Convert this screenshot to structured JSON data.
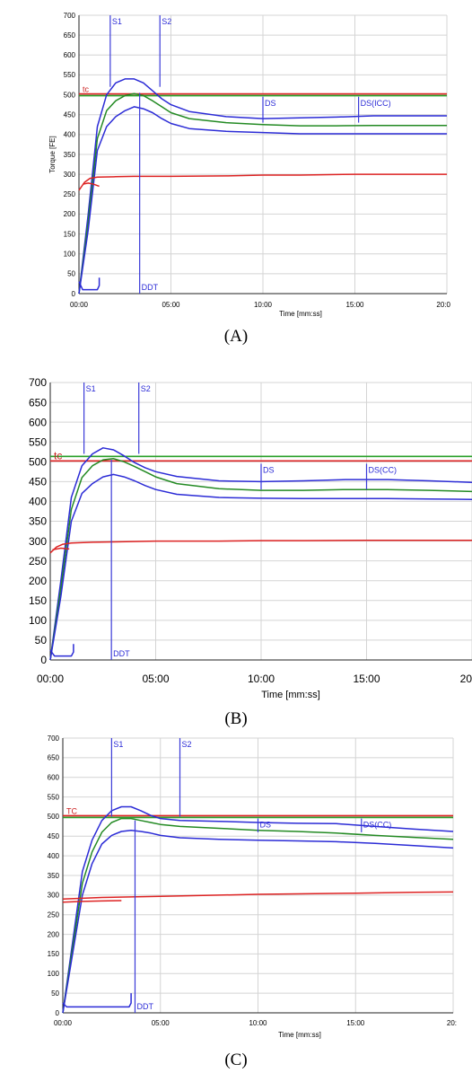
{
  "chart_data": [
    {
      "type": "line",
      "caption": "(A)",
      "xlabel": "Time [mm:ss]",
      "ylabel": "Torque [FE]",
      "xlim": [
        0,
        20
      ],
      "ylim": [
        0,
        700
      ],
      "x_tick_labels": [
        "00:00",
        "05:00",
        "10:00",
        "15:00",
        "20:0"
      ],
      "y_ticks": [
        0,
        50,
        100,
        150,
        200,
        250,
        300,
        350,
        400,
        450,
        500,
        550,
        600,
        650,
        700
      ],
      "grid": true,
      "tc_label": "tc",
      "tc_value": 500,
      "markers": [
        {
          "label": "S1",
          "x": 1.7,
          "kind": "top"
        },
        {
          "label": "S2",
          "x": 4.4,
          "kind": "top"
        },
        {
          "label": "DDT",
          "x": 3.3,
          "kind": "bottom"
        },
        {
          "label": "DS",
          "x": 10.0,
          "kind": "mid"
        },
        {
          "label": "DS(ICC)",
          "x": 15.2,
          "kind": "mid"
        }
      ],
      "series": [
        {
          "color": "#2b2bd6",
          "x": [
            0,
            0.5,
            1,
            1.5,
            2,
            2.5,
            3,
            3.5,
            4,
            4.5,
            5,
            6,
            8,
            10,
            12,
            14,
            16,
            18,
            20
          ],
          "values": [
            0,
            200,
            420,
            500,
            530,
            540,
            540,
            530,
            510,
            490,
            475,
            458,
            445,
            440,
            442,
            444,
            447,
            447,
            447
          ]
        },
        {
          "color": "#238a23",
          "x": [
            0,
            0.5,
            1,
            1.5,
            2,
            2.5,
            3,
            3.5,
            4,
            4.5,
            5,
            6,
            8,
            10,
            12,
            14,
            16,
            18,
            20
          ],
          "values": [
            0,
            180,
            390,
            460,
            485,
            498,
            503,
            498,
            485,
            470,
            455,
            440,
            430,
            425,
            422,
            422,
            423,
            423,
            423
          ]
        },
        {
          "color": "#2b2bd6",
          "x": [
            0,
            0.5,
            1,
            1.5,
            2,
            2.5,
            3,
            3.5,
            4,
            4.5,
            5,
            6,
            8,
            10,
            12,
            14,
            16,
            18,
            20
          ],
          "values": [
            0,
            160,
            360,
            420,
            445,
            460,
            470,
            465,
            455,
            440,
            428,
            415,
            408,
            405,
            402,
            402,
            402,
            402,
            402
          ]
        },
        {
          "color": "#dd2222",
          "x": [
            0,
            0.3,
            0.6,
            1,
            2,
            3,
            5,
            8,
            10,
            12,
            15,
            18,
            20
          ],
          "values": [
            260,
            280,
            290,
            293,
            294,
            295,
            295,
            296,
            298,
            298,
            300,
            300,
            300
          ]
        },
        {
          "color": "#dd2222",
          "x": [
            0.2,
            0.5,
            0.8,
            1.1
          ],
          "values": [
            275,
            278,
            275,
            270
          ]
        },
        {
          "color": "#2b2bd6",
          "x": [
            0,
            0.2,
            1.0,
            1.1,
            1.1
          ],
          "values": [
            30,
            10,
            10,
            20,
            40
          ]
        }
      ]
    },
    {
      "type": "line",
      "caption": "(B)",
      "xlabel": "Time [mm:ss]",
      "ylabel": "",
      "xlim": [
        0,
        20
      ],
      "ylim": [
        0,
        700
      ],
      "x_tick_labels": [
        "00:00",
        "05:00",
        "10:00",
        "15:00",
        "20"
      ],
      "y_ticks": [
        0,
        50,
        100,
        150,
        200,
        250,
        300,
        350,
        400,
        450,
        500,
        550,
        600,
        650,
        700
      ],
      "grid": true,
      "tc_label": "tc",
      "tc_value": 500,
      "markers": [
        {
          "label": "S1",
          "x": 1.6,
          "kind": "top"
        },
        {
          "label": "S2",
          "x": 4.2,
          "kind": "top"
        },
        {
          "label": "DDT",
          "x": 2.9,
          "kind": "bottom"
        },
        {
          "label": "DS",
          "x": 10.0,
          "kind": "mid"
        },
        {
          "label": "DS(CC)",
          "x": 15.0,
          "kind": "mid"
        }
      ],
      "series": [
        {
          "color": "#2b2bd6",
          "x": [
            0,
            0.5,
            1,
            1.5,
            2,
            2.5,
            3,
            3.5,
            4,
            4.5,
            5,
            6,
            8,
            10,
            12,
            14,
            16,
            18,
            20
          ],
          "values": [
            0,
            200,
            410,
            490,
            520,
            535,
            530,
            515,
            498,
            485,
            475,
            463,
            452,
            450,
            452,
            455,
            455,
            452,
            448
          ]
        },
        {
          "color": "#238a23",
          "x": [
            0,
            0.5,
            1,
            1.5,
            2,
            2.5,
            3,
            3.5,
            4,
            4.5,
            5,
            6,
            8,
            10,
            12,
            14,
            16,
            18,
            20
          ],
          "values": [
            0,
            180,
            380,
            460,
            490,
            505,
            508,
            500,
            488,
            475,
            462,
            445,
            432,
            428,
            428,
            430,
            430,
            428,
            425
          ]
        },
        {
          "color": "#2b2bd6",
          "x": [
            0,
            0.5,
            1,
            1.5,
            2,
            2.5,
            3,
            3.5,
            4,
            4.5,
            5,
            6,
            8,
            10,
            12,
            14,
            16,
            18,
            20
          ],
          "values": [
            0,
            160,
            350,
            420,
            445,
            462,
            468,
            462,
            452,
            440,
            430,
            418,
            410,
            408,
            407,
            407,
            407,
            406,
            405
          ]
        },
        {
          "color": "#dd2222",
          "x": [
            0,
            0.3,
            0.6,
            1,
            2,
            3,
            5,
            8,
            10,
            12,
            15,
            18,
            20
          ],
          "values": [
            270,
            285,
            292,
            295,
            297,
            298,
            300,
            300,
            301,
            301,
            302,
            302,
            302
          ]
        },
        {
          "color": "#dd2222",
          "x": [
            0.1,
            0.5,
            0.9
          ],
          "values": [
            278,
            282,
            280
          ]
        },
        {
          "color": "#2b2bd6",
          "x": [
            0,
            0.2,
            1.0,
            1.1,
            1.1
          ],
          "values": [
            25,
            10,
            10,
            20,
            40
          ]
        }
      ]
    },
    {
      "type": "line",
      "caption": "(C)",
      "xlabel": "Time [mm:ss]",
      "ylabel": "",
      "xlim": [
        0,
        20
      ],
      "ylim": [
        0,
        700
      ],
      "x_tick_labels": [
        "00:00",
        "05:00",
        "10:00",
        "15:00",
        "20:"
      ],
      "y_ticks": [
        0,
        50,
        100,
        150,
        200,
        250,
        300,
        350,
        400,
        450,
        500,
        550,
        600,
        650,
        700
      ],
      "grid": true,
      "tc_label": "TC",
      "tc_value": 500,
      "markers": [
        {
          "label": "S1",
          "x": 2.5,
          "kind": "top"
        },
        {
          "label": "S2",
          "x": 6.0,
          "kind": "top"
        },
        {
          "label": "DDT",
          "x": 3.7,
          "kind": "bottom"
        },
        {
          "label": "DS",
          "x": 10.0,
          "kind": "mid"
        },
        {
          "label": "DS(CC)",
          "x": 15.3,
          "kind": "mid"
        }
      ],
      "series": [
        {
          "color": "#2b2bd6",
          "x": [
            0,
            0.5,
            1,
            1.5,
            2,
            2.5,
            3,
            3.5,
            4,
            4.5,
            5,
            6,
            8,
            10,
            12,
            14,
            16,
            18,
            20
          ],
          "values": [
            0,
            180,
            360,
            440,
            490,
            515,
            525,
            525,
            515,
            503,
            495,
            490,
            488,
            485,
            483,
            482,
            475,
            468,
            462
          ]
        },
        {
          "color": "#238a23",
          "x": [
            0,
            0.5,
            1,
            1.5,
            2,
            2.5,
            3,
            3.5,
            4,
            4.5,
            5,
            6,
            8,
            10,
            12,
            14,
            16,
            18,
            20
          ],
          "values": [
            0,
            165,
            330,
            410,
            460,
            485,
            495,
            495,
            490,
            485,
            480,
            475,
            470,
            465,
            462,
            458,
            452,
            447,
            442
          ]
        },
        {
          "color": "#2b2bd6",
          "x": [
            0,
            0.5,
            1,
            1.5,
            2,
            2.5,
            3,
            3.5,
            4,
            4.5,
            5,
            6,
            8,
            10,
            12,
            14,
            16,
            18,
            20
          ],
          "values": [
            0,
            150,
            300,
            380,
            430,
            452,
            462,
            465,
            462,
            458,
            452,
            446,
            442,
            440,
            438,
            436,
            432,
            426,
            420
          ]
        },
        {
          "color": "#dd2222",
          "x": [
            0,
            1,
            2,
            5,
            8,
            10,
            12,
            15,
            18,
            20
          ],
          "values": [
            290,
            292,
            294,
            297,
            300,
            302,
            303,
            305,
            307,
            308
          ]
        },
        {
          "color": "#dd2222",
          "x": [
            0,
            1,
            2,
            3
          ],
          "values": [
            282,
            284,
            285,
            286
          ]
        },
        {
          "color": "#2b2bd6",
          "x": [
            0,
            0.2,
            3.4,
            3.5,
            3.5
          ],
          "values": [
            25,
            15,
            15,
            25,
            50
          ]
        }
      ]
    }
  ]
}
